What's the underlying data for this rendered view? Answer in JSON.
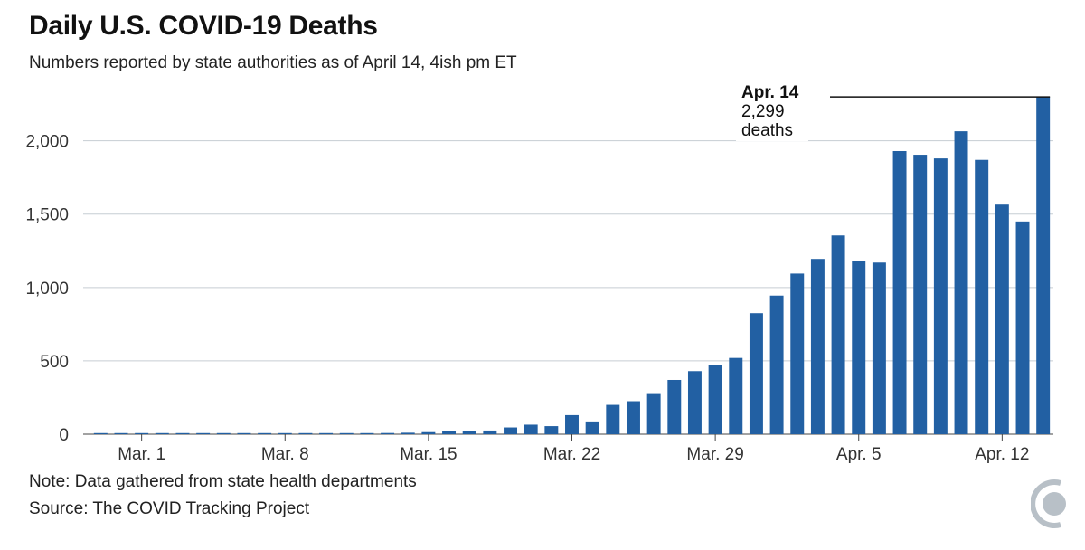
{
  "title": "Daily U.S. COVID-19 Deaths",
  "subtitle": "Numbers reported by state authorities as of April 14, 4ish pm ET",
  "note": "Note: Data gathered from state health departments",
  "source": "Source: The COVID Tracking Project",
  "colors": {
    "bar": "#2260a3",
    "grid": "#c6cdd3",
    "text": "#333333"
  },
  "logo_icon": "covid-tracking-project-logo-icon",
  "chart_data": {
    "type": "bar",
    "title": "Daily U.S. COVID-19 Deaths",
    "xlabel": "",
    "ylabel": "",
    "ylim": [
      0,
      2300
    ],
    "yticks": [
      0,
      500,
      1000,
      1500,
      2000
    ],
    "ytick_labels": [
      "0",
      "500",
      "1,000",
      "1,500",
      "2,000"
    ],
    "xtick_labels": [
      {
        "label": "Mar. 1",
        "date": "Mar. 1"
      },
      {
        "label": "Mar. 8",
        "date": "Mar. 8"
      },
      {
        "label": "Mar. 15",
        "date": "Mar. 15"
      },
      {
        "label": "Mar. 22",
        "date": "Mar. 22"
      },
      {
        "label": "Mar. 29",
        "date": "Mar. 29"
      },
      {
        "label": "Apr. 5",
        "date": "Apr. 5"
      },
      {
        "label": "Apr. 12",
        "date": "Apr. 12"
      }
    ],
    "categories": [
      "Feb. 28",
      "Feb. 29",
      "Mar. 1",
      "Mar. 2",
      "Mar. 3",
      "Mar. 4",
      "Mar. 5",
      "Mar. 6",
      "Mar. 7",
      "Mar. 8",
      "Mar. 9",
      "Mar. 10",
      "Mar. 11",
      "Mar. 12",
      "Mar. 13",
      "Mar. 14",
      "Mar. 15",
      "Mar. 16",
      "Mar. 17",
      "Mar. 18",
      "Mar. 19",
      "Mar. 20",
      "Mar. 21",
      "Mar. 22",
      "Mar. 23",
      "Mar. 24",
      "Mar. 25",
      "Mar. 26",
      "Mar. 27",
      "Mar. 28",
      "Mar. 29",
      "Mar. 30",
      "Mar. 31",
      "Apr. 1",
      "Apr. 2",
      "Apr. 3",
      "Apr. 4",
      "Apr. 5",
      "Apr. 6",
      "Apr. 7",
      "Apr. 8",
      "Apr. 9",
      "Apr. 10",
      "Apr. 11",
      "Apr. 12",
      "Apr. 13",
      "Apr. 14"
    ],
    "values": [
      1,
      1,
      1,
      2,
      2,
      3,
      3,
      4,
      3,
      4,
      4,
      5,
      6,
      7,
      8,
      10,
      14,
      20,
      24,
      25,
      46,
      65,
      55,
      130,
      87,
      200,
      225,
      280,
      370,
      430,
      470,
      520,
      825,
      945,
      1095,
      1195,
      1355,
      1180,
      1170,
      1930,
      1905,
      1880,
      2065,
      1870,
      1565,
      1450,
      2299
    ],
    "annotation": {
      "date": "Apr. 14",
      "value": "2,299",
      "unit": "deaths"
    }
  }
}
